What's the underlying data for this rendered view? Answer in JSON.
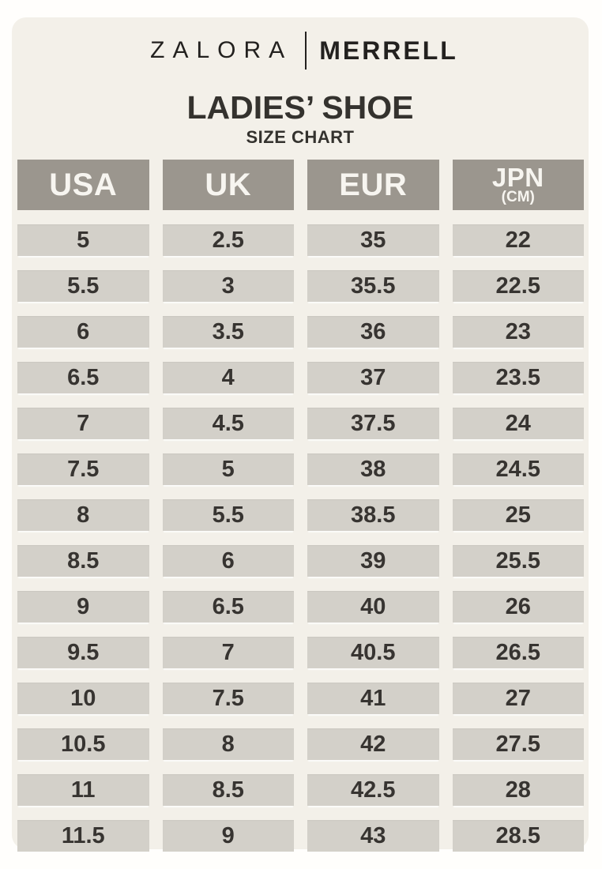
{
  "brand": {
    "left_logo": "ZALORA",
    "right_logo": "MERRELL"
  },
  "header": {
    "title": "LADIES’ SHOE",
    "subtitle": "SIZE CHART"
  },
  "table": {
    "headers": [
      {
        "label": "USA",
        "sublabel": ""
      },
      {
        "label": "UK",
        "sublabel": ""
      },
      {
        "label": "EUR",
        "sublabel": ""
      },
      {
        "label": "JPN",
        "sublabel": "(CM)"
      }
    ],
    "rows": [
      [
        "5",
        "2.5",
        "35",
        "22"
      ],
      [
        "5.5",
        "3",
        "35.5",
        "22.5"
      ],
      [
        "6",
        "3.5",
        "36",
        "23"
      ],
      [
        "6.5",
        "4",
        "37",
        "23.5"
      ],
      [
        "7",
        "4.5",
        "37.5",
        "24"
      ],
      [
        "7.5",
        "5",
        "38",
        "24.5"
      ],
      [
        "8",
        "5.5",
        "38.5",
        "25"
      ],
      [
        "8.5",
        "6",
        "39",
        "25.5"
      ],
      [
        "9",
        "6.5",
        "40",
        "26"
      ],
      [
        "9.5",
        "7",
        "40.5",
        "26.5"
      ],
      [
        "10",
        "7.5",
        "41",
        "27"
      ],
      [
        "10.5",
        "8",
        "42",
        "27.5"
      ],
      [
        "11",
        "8.5",
        "42.5",
        "28"
      ],
      [
        "11.5",
        "9",
        "43",
        "28.5"
      ]
    ]
  },
  "chart_data": {
    "type": "table",
    "title": "LADIES’ SHOE SIZE CHART",
    "columns": [
      "USA",
      "UK",
      "EUR",
      "JPN (CM)"
    ],
    "rows": [
      [
        5,
        2.5,
        35,
        22
      ],
      [
        5.5,
        3,
        35.5,
        22.5
      ],
      [
        6,
        3.5,
        36,
        23
      ],
      [
        6.5,
        4,
        37,
        23.5
      ],
      [
        7,
        4.5,
        37.5,
        24
      ],
      [
        7.5,
        5,
        38,
        24.5
      ],
      [
        8,
        5.5,
        38.5,
        25
      ],
      [
        8.5,
        6,
        39,
        25.5
      ],
      [
        9,
        6.5,
        40,
        26
      ],
      [
        9.5,
        7,
        40.5,
        26.5
      ],
      [
        10,
        7.5,
        41,
        27
      ],
      [
        10.5,
        8,
        42,
        27.5
      ],
      [
        11,
        8.5,
        42.5,
        28
      ],
      [
        11.5,
        9,
        43,
        28.5
      ]
    ]
  },
  "colors": {
    "page_background": "#fffefc",
    "card_background": "#f3f0e9",
    "header_cell_background": "#9b968e",
    "header_cell_text": "#f7f5f0",
    "data_cell_background": "#d3d0c9",
    "data_cell_text": "#373431",
    "brand_text": "#23211f"
  }
}
